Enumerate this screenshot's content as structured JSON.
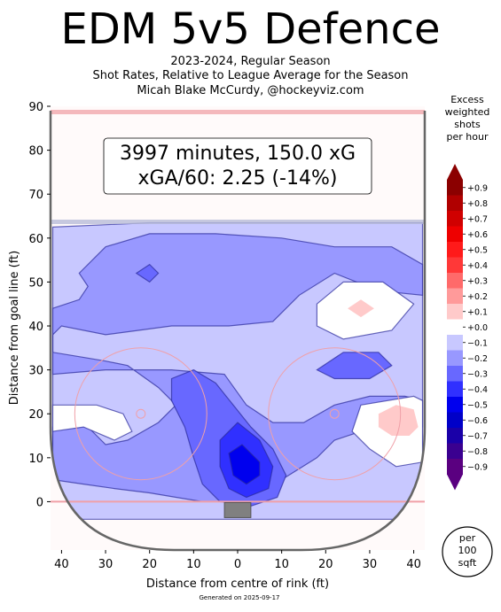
{
  "header": {
    "title": "EDM 5v5 Defence",
    "subtitle_lines": [
      "2023-2024, Regular Season",
      "Shot Rates, Relative to League Average for the Season",
      "Micah Blake McCurdy, @hockeyviz.com"
    ]
  },
  "info_box": {
    "line1": "3997 minutes, 150.0 xG",
    "line2": "xGA/60: 2.25 (-14%)"
  },
  "colorbar": {
    "title_lines": [
      "Excess",
      "weighted",
      "shots",
      "per hour"
    ],
    "ticks": [
      "+0.9",
      "+0.8",
      "+0.7",
      "+0.6",
      "+0.5",
      "+0.4",
      "+0.3",
      "+0.2",
      "+0.1",
      "+0.0",
      "−0.1",
      "−0.2",
      "−0.3",
      "−0.4",
      "−0.5",
      "−0.6",
      "−0.7",
      "−0.8",
      "−0.9"
    ],
    "colors": [
      "#8b0000",
      "#b00000",
      "#d00000",
      "#ee0000",
      "#ff1a1a",
      "#ff3838",
      "#ff6a6a",
      "#ff9a9a",
      "#ffcaca",
      "#ffffff",
      "#c8c8ff",
      "#9898ff",
      "#6868ff",
      "#3030ff",
      "#0000ee",
      "#0000c8",
      "#1a00a8",
      "#3a0090",
      "#5a0080"
    ],
    "scale_label": [
      "per",
      "100",
      "sqft"
    ]
  },
  "chart_data": {
    "type": "heatmap",
    "xlabel": "Distance from centre of rink (ft)",
    "ylabel": "Distance from goal line (ft)",
    "xlim": [
      -42.5,
      42.5
    ],
    "ylim": [
      -11,
      90
    ],
    "x_ticks": [
      -40,
      -30,
      -20,
      -10,
      0,
      10,
      20,
      30,
      40
    ],
    "x_tick_labels": [
      "40",
      "30",
      "20",
      "10",
      "0",
      "10",
      "20",
      "30",
      "40"
    ],
    "y_ticks": [
      0,
      10,
      20,
      30,
      40,
      50,
      60,
      70,
      80,
      90
    ],
    "y_tick_labels": [
      "0",
      "10",
      "20",
      "30",
      "40",
      "50",
      "60",
      "70",
      "80",
      "90"
    ],
    "regions": [
      {
        "level": -0.1,
        "color": "#c8c8ff",
        "pts": [
          [
            -42,
            62.5
          ],
          [
            -20,
            63.5
          ],
          [
            0,
            63.5
          ],
          [
            20,
            63.5
          ],
          [
            42,
            63.5
          ],
          [
            42,
            -4
          ],
          [
            -42,
            -4
          ]
        ]
      },
      {
        "level": -0.2,
        "color": "#9898ff",
        "pts": [
          [
            -36,
            52
          ],
          [
            -30,
            58
          ],
          [
            -20,
            61
          ],
          [
            -5,
            61
          ],
          [
            10,
            60
          ],
          [
            22,
            58
          ],
          [
            35,
            58
          ],
          [
            42,
            54
          ],
          [
            42,
            47
          ],
          [
            32,
            48
          ],
          [
            22,
            52
          ],
          [
            14,
            47
          ],
          [
            8,
            41
          ],
          [
            -2,
            40
          ],
          [
            -15,
            40
          ],
          [
            -30,
            38
          ],
          [
            -40,
            40
          ],
          [
            -42,
            38
          ],
          [
            -42,
            29
          ],
          [
            -30,
            30
          ],
          [
            -15,
            30
          ],
          [
            -3,
            29
          ],
          [
            2,
            22
          ],
          [
            8,
            18
          ],
          [
            15,
            18
          ],
          [
            22,
            22
          ],
          [
            30,
            24
          ],
          [
            38,
            24
          ],
          [
            42,
            23
          ],
          [
            42,
            17
          ],
          [
            36,
            16
          ],
          [
            28,
            16
          ],
          [
            22,
            14
          ],
          [
            18,
            10
          ],
          [
            10,
            5
          ],
          [
            5,
            1
          ],
          [
            -2,
            0
          ],
          [
            -8,
            0
          ],
          [
            -14,
            1
          ],
          [
            -20,
            2
          ],
          [
            -28,
            3
          ],
          [
            -35,
            4
          ],
          [
            -42,
            5
          ],
          [
            -42,
            17
          ],
          [
            -35,
            18
          ],
          [
            -30,
            13
          ],
          [
            -25,
            14
          ],
          [
            -18,
            18
          ],
          [
            -14,
            22
          ],
          [
            -18,
            26
          ],
          [
            -25,
            31
          ],
          [
            -30,
            32
          ],
          [
            -36,
            33
          ],
          [
            -42,
            34
          ],
          [
            -42,
            44
          ],
          [
            -36,
            46
          ],
          [
            -34,
            49
          ]
        ]
      },
      {
        "level": -0.3,
        "color": "#6868ff",
        "pts": [
          [
            -15,
            28
          ],
          [
            -10,
            30
          ],
          [
            -5,
            27
          ],
          [
            -1,
            22
          ],
          [
            3,
            17
          ],
          [
            8,
            12
          ],
          [
            11,
            6
          ],
          [
            9,
            1
          ],
          [
            3,
            -1
          ],
          [
            -4,
            0
          ],
          [
            -8,
            4
          ],
          [
            -10,
            10
          ],
          [
            -12,
            17
          ],
          [
            -15,
            23
          ]
        ]
      },
      {
        "level": -0.3,
        "color": "#6868ff",
        "pts": [
          [
            18,
            30
          ],
          [
            24,
            34
          ],
          [
            32,
            34
          ],
          [
            35,
            31
          ],
          [
            30,
            28
          ],
          [
            22,
            28
          ]
        ]
      },
      {
        "level": -0.3,
        "color": "#6868ff",
        "pts": [
          [
            -23,
            52
          ],
          [
            -20,
            54
          ],
          [
            -18,
            52
          ],
          [
            -20,
            50
          ]
        ]
      },
      {
        "level": -0.4,
        "color": "#3030ff",
        "pts": [
          [
            -4,
            14
          ],
          [
            0,
            18
          ],
          [
            5,
            14
          ],
          [
            8,
            8
          ],
          [
            7,
            3
          ],
          [
            2,
            1
          ],
          [
            -2,
            3
          ],
          [
            -4,
            8
          ]
        ]
      },
      {
        "level": -0.5,
        "color": "#0000ee",
        "pts": [
          [
            -2,
            11
          ],
          [
            1,
            13
          ],
          [
            5,
            9
          ],
          [
            5,
            6
          ],
          [
            2,
            4
          ],
          [
            -1,
            6
          ]
        ]
      },
      {
        "level": 0.0,
        "color": "#ffffff",
        "pts": [
          [
            18,
            45
          ],
          [
            24,
            50
          ],
          [
            33,
            50
          ],
          [
            40,
            45
          ],
          [
            35,
            39
          ],
          [
            24,
            37
          ],
          [
            18,
            40
          ]
        ]
      },
      {
        "level": 0.0,
        "color": "#ffffff",
        "pts": [
          [
            -42,
            22
          ],
          [
            -32,
            22
          ],
          [
            -26,
            20
          ],
          [
            -24,
            16
          ],
          [
            -28,
            14
          ],
          [
            -35,
            17
          ],
          [
            -42,
            16
          ]
        ]
      },
      {
        "level": 0.0,
        "color": "#ffffff",
        "pts": [
          [
            28,
            22
          ],
          [
            40,
            24
          ],
          [
            42,
            23
          ],
          [
            42,
            9
          ],
          [
            36,
            8
          ],
          [
            30,
            12
          ],
          [
            26,
            16
          ]
        ]
      },
      {
        "level": 0.1,
        "color": "#ffcaca",
        "pts": [
          [
            25,
            44
          ],
          [
            28,
            46
          ],
          [
            31,
            44
          ],
          [
            28,
            42
          ]
        ]
      },
      {
        "level": 0.1,
        "color": "#ffcaca",
        "pts": [
          [
            32,
            20
          ],
          [
            36,
            22
          ],
          [
            40,
            21
          ],
          [
            41,
            17
          ],
          [
            39,
            15
          ],
          [
            35,
            15
          ],
          [
            32,
            17
          ]
        ]
      }
    ]
  },
  "footer": "Generated on 2025-09-17"
}
